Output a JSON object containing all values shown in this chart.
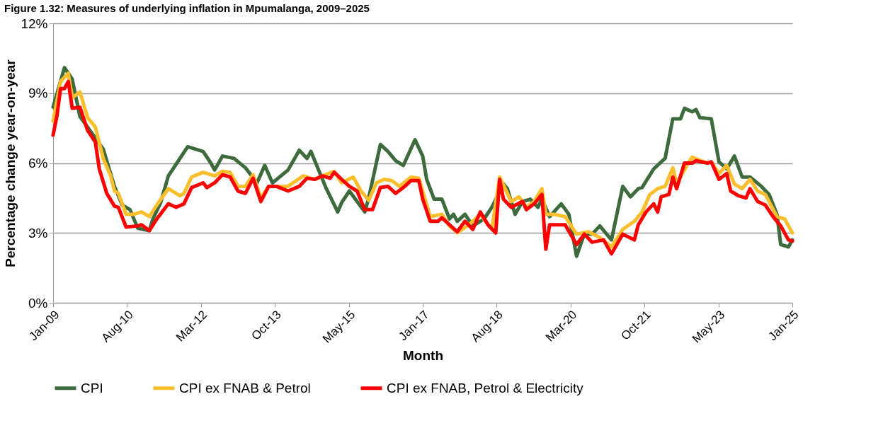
{
  "chart_data": {
    "type": "line",
    "title": "Figure 1.32: Measures of underlying inflation in Mpumalanga, 2009–2025",
    "xlabel": "Month",
    "ylabel": "Percentage change year-on-year",
    "xlim": [
      "2009-01",
      "2025-01"
    ],
    "xticks": [
      {
        "value": "2009-01-01",
        "label": "Jan-09"
      },
      {
        "value": "2010-08-08",
        "label": "Aug-10"
      },
      {
        "value": "2012-03-15",
        "label": "Mar-12"
      },
      {
        "value": "2013-10-21",
        "label": "Oct-13"
      },
      {
        "value": "2015-05-29",
        "label": "May-15"
      },
      {
        "value": "2017-01-01",
        "label": "Jan-17"
      },
      {
        "value": "2018-08-08",
        "label": "Aug-18"
      },
      {
        "value": "2020-03-15",
        "label": "Mar-20"
      },
      {
        "value": "2021-10-21",
        "label": "Oct-21"
      },
      {
        "value": "2023-05-29",
        "label": "May-23"
      },
      {
        "value": "2025-01-01",
        "label": "Jan-25"
      }
    ],
    "ylim": [
      0,
      12
    ],
    "yticks": [
      {
        "value": 0,
        "label": "0%"
      },
      {
        "value": 3,
        "label": "3%"
      },
      {
        "value": 6,
        "label": "6%"
      },
      {
        "value": 9,
        "label": "9%"
      },
      {
        "value": 12,
        "label": "12%"
      }
    ],
    "grid": "y",
    "legend": "bottom",
    "line_style": "solid",
    "marker": "none",
    "series": [
      {
        "name": "CPI",
        "color": "#3e6b3e",
        "x": [
          "2009-01",
          "2009-04",
          "2009-06",
          "2009-08",
          "2009-11",
          "2010-02",
          "2010-05",
          "2010-07",
          "2010-09",
          "2010-11",
          "2011-02",
          "2011-03",
          "2011-05",
          "2011-07",
          "2011-12",
          "2012-04",
          "2012-06",
          "2012-07",
          "2012-09",
          "2012-12",
          "2013-03",
          "2013-06",
          "2013-08",
          "2013-10",
          "2014-02",
          "2014-05",
          "2014-07",
          "2014-08",
          "2014-10",
          "2014-12",
          "2015-03",
          "2015-04",
          "2015-06",
          "2015-10",
          "2015-11",
          "2016-02",
          "2016-04",
          "2016-06",
          "2016-08",
          "2016-11",
          "2017-01",
          "2017-02",
          "2017-04",
          "2017-06",
          "2017-08",
          "2017-09",
          "2017-10",
          "2017-12",
          "2018-02",
          "2018-05",
          "2018-07",
          "2018-10",
          "2018-11",
          "2019-01",
          "2019-03",
          "2019-05",
          "2019-07",
          "2019-08",
          "2019-10",
          "2020-01",
          "2020-03",
          "2020-05",
          "2020-07",
          "2020-09",
          "2020-11",
          "2021-02",
          "2021-05",
          "2021-07",
          "2021-09",
          "2021-10",
          "2022-01",
          "2022-03",
          "2022-04",
          "2022-06",
          "2022-08",
          "2022-09",
          "2022-11",
          "2022-12",
          "2023-01",
          "2023-04",
          "2023-06",
          "2023-08",
          "2023-10",
          "2023-12",
          "2024-02",
          "2024-05",
          "2024-07",
          "2024-09",
          "2024-10",
          "2024-12",
          "2025-01"
        ],
        "values": [
          8.4,
          10.1,
          9.6,
          8.0,
          7.3,
          6.6,
          5.0,
          4.2,
          4.0,
          3.2,
          3.1,
          3.6,
          4.3,
          5.45,
          6.7,
          6.5,
          6.0,
          5.7,
          6.3,
          6.2,
          5.8,
          5.15,
          5.9,
          5.15,
          5.7,
          6.55,
          6.2,
          6.5,
          5.7,
          4.9,
          3.9,
          4.3,
          4.8,
          3.9,
          4.5,
          6.8,
          6.5,
          6.1,
          5.9,
          7.0,
          6.3,
          5.3,
          4.45,
          4.45,
          3.6,
          3.8,
          3.5,
          3.8,
          3.3,
          3.6,
          4.1,
          5.1,
          4.9,
          3.8,
          4.35,
          4.45,
          4.1,
          4.45,
          3.7,
          4.25,
          3.8,
          2.0,
          2.95,
          2.95,
          3.3,
          2.7,
          5.0,
          4.55,
          4.9,
          4.95,
          5.75,
          6.05,
          6.2,
          7.9,
          7.9,
          8.35,
          8.2,
          8.3,
          7.95,
          7.9,
          6.05,
          5.75,
          6.3,
          5.4,
          5.4,
          5.0,
          4.65,
          3.8,
          2.5,
          2.4,
          2.7
        ]
      },
      {
        "name": "CPI ex FNAB & Petrol",
        "color": "#fbbf2d",
        "x": [
          "2009-01",
          "2009-03",
          "2009-05",
          "2009-06",
          "2009-08",
          "2009-10",
          "2009-12",
          "2010-02",
          "2010-04",
          "2010-05",
          "2010-06",
          "2010-08",
          "2010-10",
          "2010-12",
          "2011-02",
          "2011-04",
          "2011-07",
          "2011-10",
          "2011-11",
          "2012-01",
          "2012-04",
          "2012-07",
          "2012-09",
          "2012-11",
          "2013-01",
          "2013-03",
          "2013-05",
          "2013-07",
          "2013-09",
          "2013-12",
          "2014-02",
          "2014-06",
          "2014-09",
          "2014-11",
          "2015-02",
          "2015-04",
          "2015-07",
          "2015-09",
          "2015-11",
          "2016-01",
          "2016-03",
          "2016-05",
          "2016-07",
          "2016-10",
          "2016-12",
          "2017-03",
          "2017-06",
          "2017-08",
          "2017-10",
          "2018-01",
          "2018-04",
          "2018-07",
          "2018-09",
          "2018-12",
          "2019-02",
          "2019-04",
          "2019-06",
          "2019-08",
          "2019-09",
          "2019-11",
          "2020-02",
          "2020-05",
          "2020-08",
          "2020-11",
          "2021-02",
          "2021-05",
          "2021-08",
          "2021-10",
          "2021-12",
          "2022-02",
          "2022-04",
          "2022-06",
          "2022-07",
          "2022-10",
          "2022-11",
          "2023-03",
          "2023-04",
          "2023-06",
          "2023-08",
          "2023-10",
          "2023-12",
          "2024-02",
          "2024-04",
          "2024-06",
          "2024-09",
          "2024-11",
          "2025-01"
        ],
        "values": [
          7.8,
          9.5,
          9.85,
          8.8,
          9.05,
          7.95,
          7.55,
          6.2,
          5.45,
          4.8,
          4.7,
          3.8,
          3.8,
          3.9,
          3.7,
          4.2,
          4.9,
          4.6,
          4.7,
          5.4,
          5.6,
          5.45,
          5.65,
          5.6,
          5.0,
          5.0,
          5.5,
          4.5,
          5.0,
          5.0,
          5.0,
          5.45,
          5.3,
          5.45,
          5.65,
          5.15,
          5.4,
          4.8,
          4.4,
          5.15,
          5.3,
          5.25,
          5.0,
          5.4,
          5.35,
          3.7,
          3.8,
          3.3,
          3.0,
          3.35,
          3.8,
          3.15,
          5.4,
          4.35,
          4.55,
          4.1,
          4.35,
          4.9,
          3.8,
          3.8,
          3.7,
          2.95,
          3.05,
          2.8,
          2.4,
          3.15,
          3.5,
          3.9,
          4.65,
          4.9,
          5.0,
          5.8,
          5.1,
          6.0,
          6.25,
          6.0,
          6.05,
          5.55,
          5.9,
          5.1,
          4.9,
          5.3,
          4.8,
          4.65,
          3.7,
          3.6,
          3.0
        ]
      },
      {
        "name": "CPI ex FNAB, Petrol & Electricity",
        "color": "#ff0000",
        "x": [
          "2009-01",
          "2009-02",
          "2009-03",
          "2009-04",
          "2009-05",
          "2009-06",
          "2009-08",
          "2009-10",
          "2009-12",
          "2010-01",
          "2010-03",
          "2010-05",
          "2010-06",
          "2010-08",
          "2010-11",
          "2010-12",
          "2011-02",
          "2011-04",
          "2011-07",
          "2011-09",
          "2011-11",
          "2012-01",
          "2012-04",
          "2012-05",
          "2012-07",
          "2012-09",
          "2012-11",
          "2013-01",
          "2013-03",
          "2013-05",
          "2013-07",
          "2013-09",
          "2013-11",
          "2014-02",
          "2014-05",
          "2014-07",
          "2014-09",
          "2014-11",
          "2015-01",
          "2015-02",
          "2015-04",
          "2015-06",
          "2015-08",
          "2015-10",
          "2015-12",
          "2016-02",
          "2016-04",
          "2016-06",
          "2016-08",
          "2016-10",
          "2016-12",
          "2017-01",
          "2017-03",
          "2017-05",
          "2017-06",
          "2017-08",
          "2017-10",
          "2017-12",
          "2018-02",
          "2018-04",
          "2018-06",
          "2018-08",
          "2018-09",
          "2018-10",
          "2018-12",
          "2019-03",
          "2019-04",
          "2019-06",
          "2019-08",
          "2019-09",
          "2019-10",
          "2020-02",
          "2020-05",
          "2020-07",
          "2020-09",
          "2020-12",
          "2021-02",
          "2021-05",
          "2021-08",
          "2021-09",
          "2021-11",
          "2022-01",
          "2022-02",
          "2022-03",
          "2022-05",
          "2022-06",
          "2022-07",
          "2022-09",
          "2022-11",
          "2022-12",
          "2023-03",
          "2023-04",
          "2023-06",
          "2023-08",
          "2023-09",
          "2023-11",
          "2024-01",
          "2024-02",
          "2024-04",
          "2024-06",
          "2024-08",
          "2024-10",
          "2024-12",
          "2025-01"
        ],
        "values": [
          7.2,
          8.05,
          9.2,
          9.2,
          9.5,
          8.35,
          8.4,
          7.4,
          6.9,
          5.75,
          4.7,
          4.15,
          4.1,
          3.25,
          3.3,
          3.35,
          3.1,
          3.6,
          4.25,
          4.1,
          4.25,
          4.95,
          5.15,
          4.95,
          5.15,
          5.5,
          5.4,
          4.8,
          4.7,
          5.35,
          4.35,
          5.0,
          5.0,
          4.8,
          5.0,
          5.35,
          5.3,
          5.45,
          5.35,
          5.6,
          5.3,
          5.0,
          4.8,
          4.0,
          4.0,
          4.95,
          5.0,
          4.7,
          4.95,
          5.25,
          5.25,
          4.45,
          3.5,
          3.5,
          3.65,
          3.35,
          3.05,
          3.5,
          3.15,
          3.9,
          3.35,
          3.0,
          5.3,
          4.45,
          4.1,
          4.35,
          4.0,
          4.25,
          4.65,
          2.3,
          3.35,
          3.35,
          2.5,
          2.95,
          2.6,
          2.7,
          2.1,
          2.95,
          2.7,
          3.35,
          3.9,
          4.25,
          3.9,
          4.55,
          4.65,
          5.4,
          4.9,
          6.0,
          6.0,
          6.1,
          6.0,
          6.05,
          5.3,
          5.55,
          4.8,
          4.6,
          4.5,
          4.9,
          4.35,
          4.2,
          3.7,
          3.3,
          2.7,
          2.65
        ]
      }
    ]
  }
}
